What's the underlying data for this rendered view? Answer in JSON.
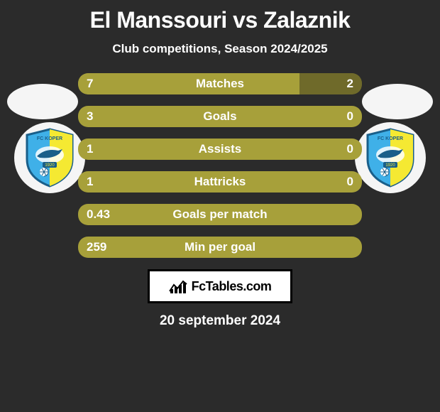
{
  "title": "El Manssouri vs Zalaznik",
  "subtitle": "Club competitions, Season 2024/2025",
  "date": "20 september 2024",
  "branding": "FcTables.com",
  "colors": {
    "bar_left": "#a7a03a",
    "bar_right": "#6f6a2a",
    "background": "#2b2b2b",
    "text": "#ffffff",
    "shield_primary": "#3fb0e8",
    "shield_accent": "#f5e932",
    "shield_outline": "#1a5f8a"
  },
  "bars": [
    {
      "label": "Matches",
      "left": "7",
      "right": "2",
      "left_pct": 78,
      "right_pct": 22
    },
    {
      "label": "Goals",
      "left": "3",
      "right": "0",
      "left_pct": 100,
      "right_pct": 0
    },
    {
      "label": "Assists",
      "left": "1",
      "right": "0",
      "left_pct": 100,
      "right_pct": 0
    },
    {
      "label": "Hattricks",
      "left": "1",
      "right": "0",
      "left_pct": 100,
      "right_pct": 0
    },
    {
      "label": "Goals per match",
      "left": "0.43",
      "right": "",
      "left_pct": 100,
      "right_pct": 0
    },
    {
      "label": "Min per goal",
      "left": "259",
      "right": "",
      "left_pct": 100,
      "right_pct": 0
    }
  ]
}
